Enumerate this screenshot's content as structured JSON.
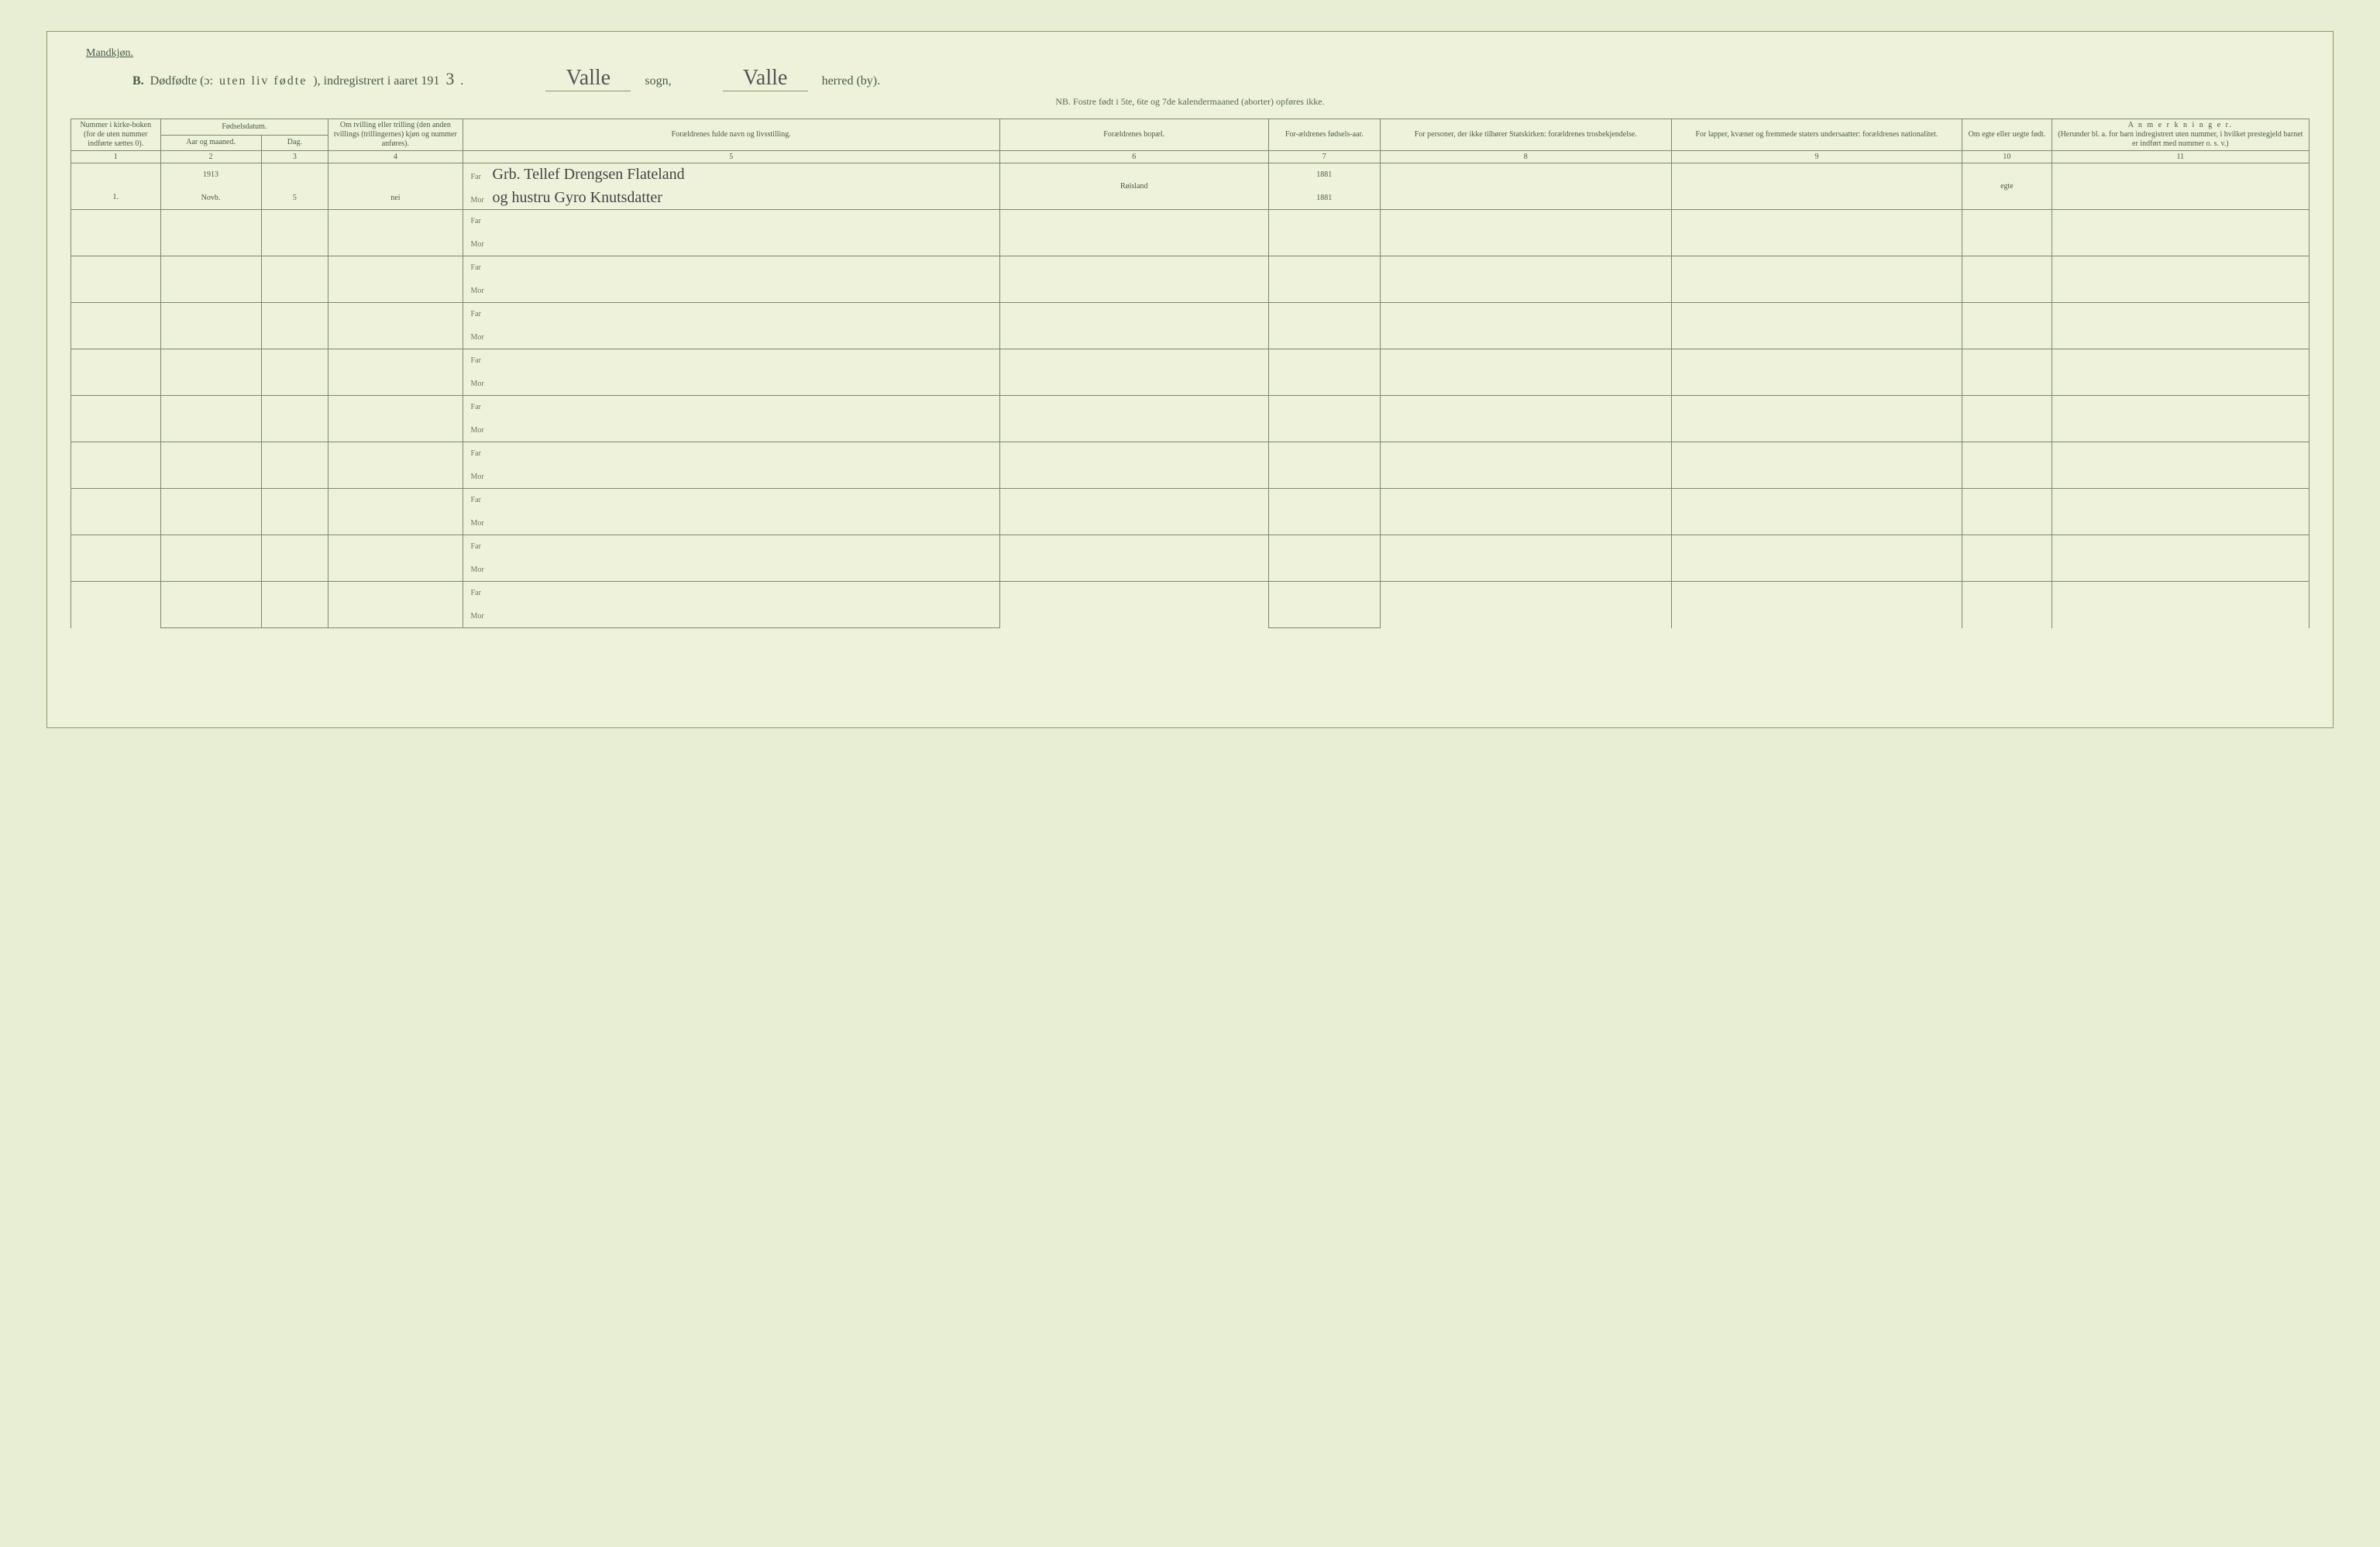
{
  "header": {
    "gender_label": "Mandkjøn.",
    "section_letter": "B.",
    "title_main": "Dødfødte (ɔ:",
    "title_spaced": "uten liv fødte",
    "title_tail": "), indregistrert i aaret 191",
    "year_suffix": "3",
    "period": ".",
    "sogn_value": "Valle",
    "sogn_label": "sogn,",
    "herred_value": "Valle",
    "herred_label": "herred (by).",
    "subtitle": "NB.  Fostre født i 5te, 6te og 7de kalendermaaned (aborter) opføres ikke."
  },
  "columns": {
    "c1": "Nummer i kirke-boken (for de uten nummer indførte sættes 0).",
    "c2_group": "Fødselsdatum.",
    "c2a": "Aar og maaned.",
    "c2b": "Dag.",
    "c4": "Om tvilling eller trilling (den anden tvillings (trillingernes) kjøn og nummer anføres).",
    "c5": "Forældrenes fulde navn og livsstilling.",
    "c6": "Forældrenes bopæl.",
    "c7": "For-ældrenes fødsels-aar.",
    "c8": "For personer, der ikke tilhører Statskirken: forældrenes trosbekjendelse.",
    "c9": "For lapper, kvæner og fremmede staters undersaatter: forældrenes nationalitet.",
    "c10": "Om egte eller uegte født.",
    "c11_title": "A n m e r k n i n g e r.",
    "c11_sub": "(Herunder bl. a. for barn indregistrert uten nummer, i hvilket prestegjeld barnet er indført med nummer o. s. v.)",
    "nums": [
      "1",
      "2",
      "3",
      "4",
      "5",
      "6",
      "7",
      "8",
      "9",
      "10",
      "11"
    ]
  },
  "labels": {
    "far": "Far",
    "mor": "Mor"
  },
  "entry": {
    "number": "1.",
    "year_line": "1913",
    "month": "Novb.",
    "day": "5",
    "twin": "nei",
    "far_name": "Grb. Tellef Drengsen Flateland",
    "mor_name": "og hustru Gyro Knutsdatter",
    "residence": "Røisland",
    "far_year": "1881",
    "mor_year": "1881",
    "legit": "egte"
  },
  "style": {
    "col_widths_pct": [
      4,
      4.5,
      3,
      6,
      24,
      12,
      5,
      13,
      13,
      4,
      11.5
    ],
    "empty_row_pairs": 9
  }
}
